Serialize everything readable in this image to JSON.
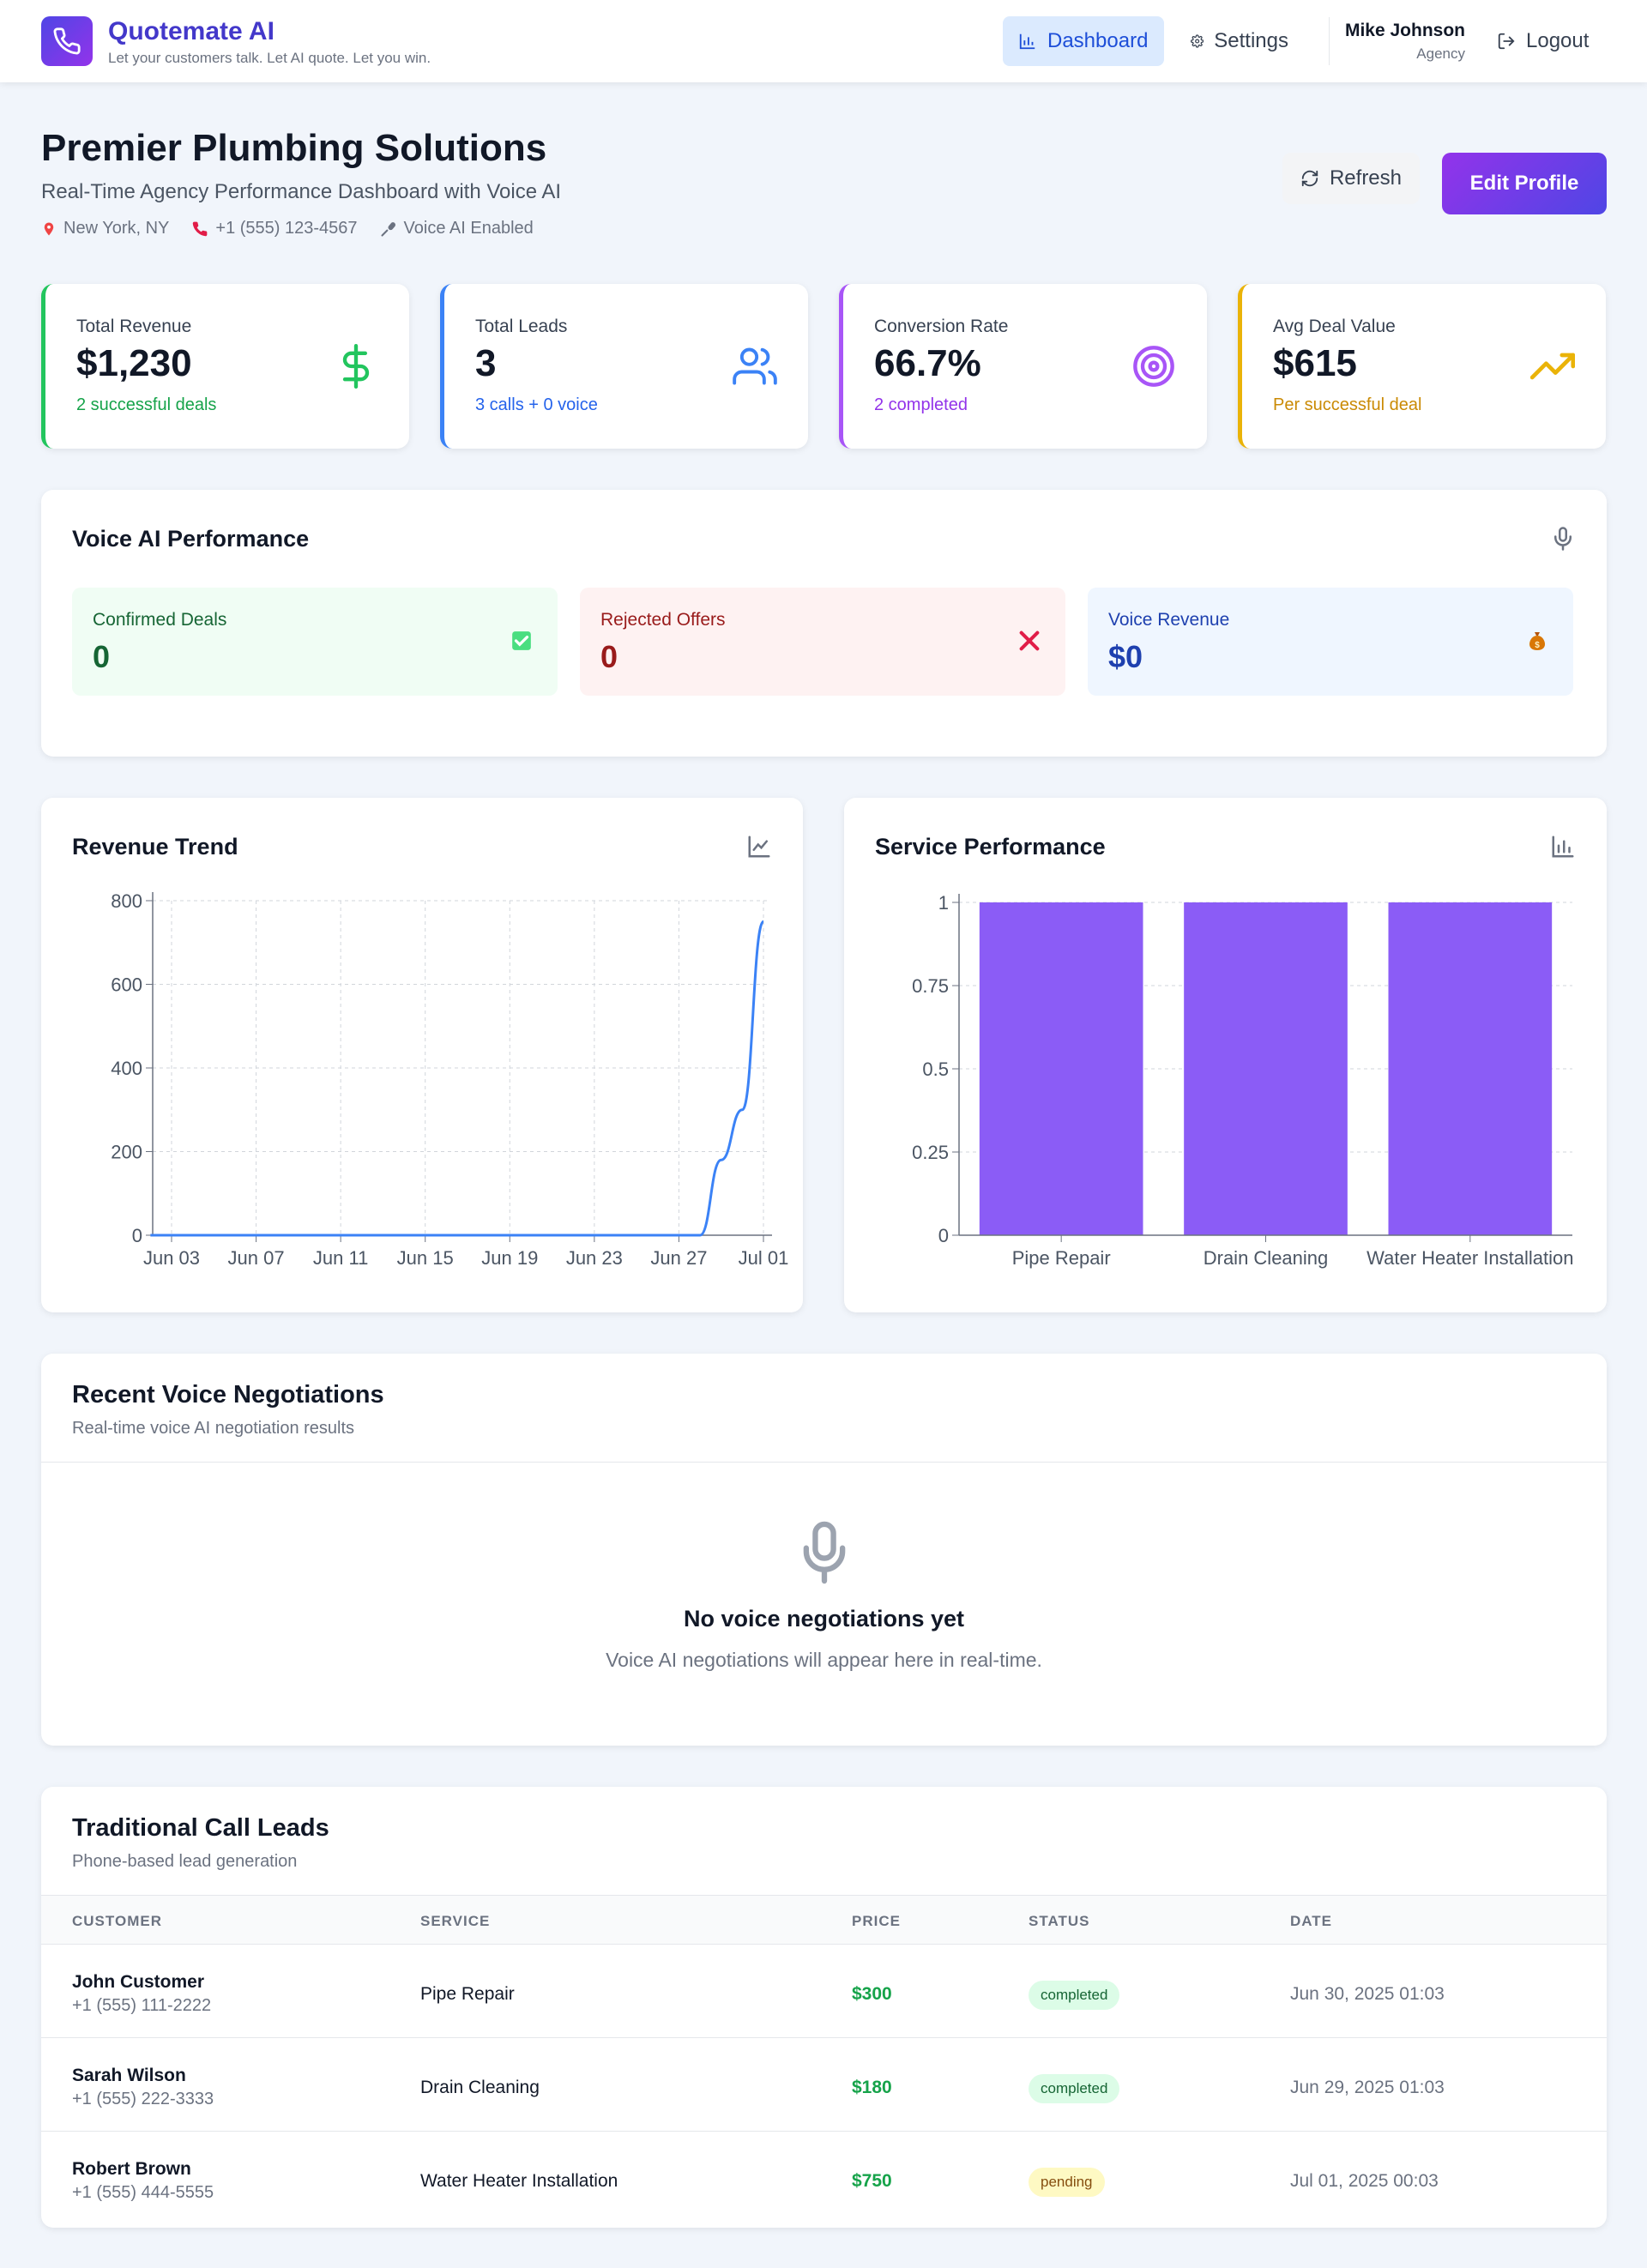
{
  "header": {
    "brand": "Quotemate AI",
    "tagline": "Let your customers talk. Let AI quote. Let you win.",
    "nav": {
      "dashboard": "Dashboard",
      "settings": "Settings",
      "logout": "Logout"
    },
    "user": {
      "name": "Mike Johnson",
      "role": "Agency"
    }
  },
  "page": {
    "title": "Premier Plumbing Solutions",
    "subtitle": "Real-Time Agency Performance Dashboard with Voice AI",
    "location": "New York, NY",
    "phone": "+1 (555) 123-4567",
    "voice": "Voice AI Enabled",
    "refresh_label": "Refresh",
    "edit_label": "Edit Profile"
  },
  "kpis": [
    {
      "label": "Total Revenue",
      "value": "$1,230",
      "sub": "2 successful deals",
      "color": "#22c55e",
      "icon": "dollar-icon"
    },
    {
      "label": "Total Leads",
      "value": "3",
      "sub": "3 calls + 0 voice",
      "color": "#3b82f6",
      "icon": "users-icon"
    },
    {
      "label": "Conversion Rate",
      "value": "66.7%",
      "sub": "2 completed",
      "color": "#a855f7",
      "icon": "target-icon"
    },
    {
      "label": "Avg Deal Value",
      "value": "$615",
      "sub": "Per successful deal",
      "color": "#eab308",
      "icon": "trending-up-icon"
    }
  ],
  "voice_ai": {
    "title": "Voice AI Performance",
    "confirmed": {
      "label": "Confirmed Deals",
      "value": "0",
      "icon": "check-box-icon"
    },
    "rejected": {
      "label": "Rejected Offers",
      "value": "0",
      "icon": "x-mark-icon"
    },
    "revenue": {
      "label": "Voice Revenue",
      "value": "$0",
      "icon": "money-bag-icon"
    }
  },
  "revenue_chart": {
    "title": "Revenue Trend",
    "icon": "line-chart-icon"
  },
  "service_chart": {
    "title": "Service Performance",
    "icon": "bar-chart-icon"
  },
  "chart_data": [
    {
      "type": "line",
      "title": "Revenue Trend",
      "x": [
        "Jun 02",
        "Jun 03",
        "Jun 04",
        "Jun 05",
        "Jun 06",
        "Jun 07",
        "Jun 08",
        "Jun 09",
        "Jun 10",
        "Jun 11",
        "Jun 12",
        "Jun 13",
        "Jun 14",
        "Jun 15",
        "Jun 16",
        "Jun 17",
        "Jun 18",
        "Jun 19",
        "Jun 20",
        "Jun 21",
        "Jun 22",
        "Jun 23",
        "Jun 24",
        "Jun 25",
        "Jun 26",
        "Jun 27",
        "Jun 28",
        "Jun 29",
        "Jun 30",
        "Jul 01"
      ],
      "values": [
        0,
        0,
        0,
        0,
        0,
        0,
        0,
        0,
        0,
        0,
        0,
        0,
        0,
        0,
        0,
        0,
        0,
        0,
        0,
        0,
        0,
        0,
        0,
        0,
        0,
        0,
        0,
        180,
        300,
        750
      ],
      "xticks": [
        "Jun 03",
        "Jun 07",
        "Jun 11",
        "Jun 15",
        "Jun 19",
        "Jun 23",
        "Jun 27",
        "Jul 01"
      ],
      "yticks": [
        0,
        200,
        400,
        600,
        800
      ],
      "ylim": [
        0,
        800
      ],
      "grid": true
    },
    {
      "type": "bar",
      "title": "Service Performance",
      "categories": [
        "Pipe Repair",
        "Drain Cleaning",
        "Water Heater Installation"
      ],
      "values": [
        1,
        1,
        1
      ],
      "yticks": [
        "0",
        "0.25",
        "0.5",
        "0.75",
        "1"
      ],
      "ylim": [
        0,
        1
      ],
      "color": "#8b5cf6",
      "grid": true
    }
  ],
  "negotiations": {
    "title": "Recent Voice Negotiations",
    "subtitle": "Real-time voice AI negotiation results",
    "empty_title": "No voice negotiations yet",
    "empty_sub": "Voice AI negotiations will appear here in real-time."
  },
  "leads": {
    "title": "Traditional Call Leads",
    "subtitle": "Phone-based lead generation",
    "columns": [
      "CUSTOMER",
      "SERVICE",
      "PRICE",
      "STATUS",
      "DATE"
    ],
    "rows": [
      {
        "name": "John Customer",
        "phone": "+1 (555) 111-2222",
        "service": "Pipe Repair",
        "price": "$300",
        "status": "completed",
        "date": "Jun 30, 2025 01:03"
      },
      {
        "name": "Sarah Wilson",
        "phone": "+1 (555) 222-3333",
        "service": "Drain Cleaning",
        "price": "$180",
        "status": "completed",
        "date": "Jun 29, 2025 01:03"
      },
      {
        "name": "Robert Brown",
        "phone": "+1 (555) 444-5555",
        "service": "Water Heater Installation",
        "price": "$750",
        "status": "pending",
        "date": "Jul 01, 2025 00:03"
      }
    ]
  }
}
